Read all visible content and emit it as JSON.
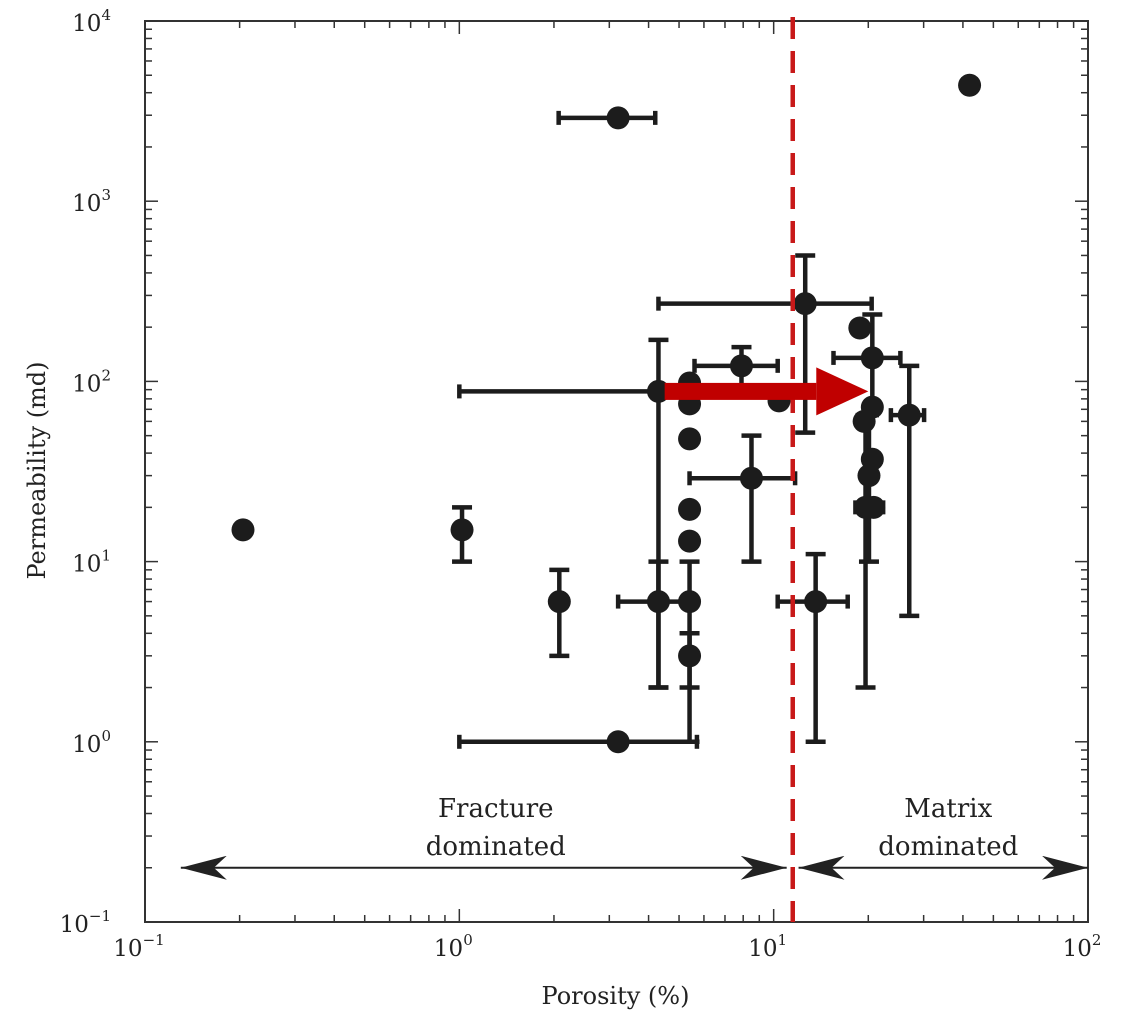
{
  "chart_data": {
    "type": "scatter",
    "xlabel": "Porosity (%)",
    "ylabel": "Permeability (md)",
    "x_scale": "log",
    "y_scale": "log",
    "xlim": [
      0.1,
      100
    ],
    "ylim": [
      0.1,
      10000
    ],
    "grid": false,
    "x_ticks": [
      {
        "base": "10",
        "exp": "−1",
        "value": 0.1
      },
      {
        "base": "10",
        "exp": "0",
        "value": 1
      },
      {
        "base": "10",
        "exp": "1",
        "value": 10
      },
      {
        "base": "10",
        "exp": "2",
        "value": 100
      }
    ],
    "y_ticks": [
      {
        "base": "10",
        "exp": "−1",
        "value": 0.1
      },
      {
        "base": "10",
        "exp": "0",
        "value": 1
      },
      {
        "base": "10",
        "exp": "1",
        "value": 10
      },
      {
        "base": "10",
        "exp": "2",
        "value": 100
      },
      {
        "base": "10",
        "exp": "3",
        "value": 1000
      },
      {
        "base": "10",
        "exp": "4",
        "value": 10000
      }
    ],
    "points": [
      {
        "x": 0.205,
        "y": 15
      },
      {
        "x": 3.2,
        "y": 2900,
        "x_err": [
          2.07,
          4.2
        ]
      },
      {
        "x": 42,
        "y": 4400
      },
      {
        "x": 12.6,
        "y": 270,
        "x_err": [
          4.3,
          20.5
        ],
        "y_err": [
          52,
          500
        ]
      },
      {
        "x": 18.8,
        "y": 198
      },
      {
        "x": 20.6,
        "y": 135,
        "x_err": [
          15.5,
          25.3
        ],
        "y_err": [
          75,
          235
        ]
      },
      {
        "x": 7.9,
        "y": 122,
        "x_err": [
          5.6,
          10.3
        ],
        "y_err": [
          95,
          155
        ]
      },
      {
        "x": 4.3,
        "y": 88,
        "x_err": [
          1.0,
          5.5
        ],
        "y_err": [
          2,
          170
        ]
      },
      {
        "x": 5.4,
        "y": 98
      },
      {
        "x": 5.4,
        "y": 75
      },
      {
        "x": 10.4,
        "y": 78
      },
      {
        "x": 19.4,
        "y": 60
      },
      {
        "x": 20.6,
        "y": 72
      },
      {
        "x": 27,
        "y": 65,
        "x_err": [
          23.6,
          30.1
        ],
        "y_err": [
          5,
          122
        ]
      },
      {
        "x": 5.4,
        "y": 48
      },
      {
        "x": 8.5,
        "y": 29,
        "x_err": [
          5.4,
          11.7
        ],
        "y_err": [
          10,
          50
        ]
      },
      {
        "x": 20.6,
        "y": 37
      },
      {
        "x": 20.1,
        "y": 30,
        "y_err": [
          10,
          65
        ]
      },
      {
        "x": 20.8,
        "y": 20,
        "x_err": [
          18.2,
          22.3
        ]
      },
      {
        "x": 19.6,
        "y": 20,
        "y_err": [
          2,
          65
        ]
      },
      {
        "x": 5.4,
        "y": 19.5
      },
      {
        "x": 5.4,
        "y": 13
      },
      {
        "x": 1.02,
        "y": 15,
        "y_err": [
          10,
          20
        ]
      },
      {
        "x": 2.08,
        "y": 6,
        "y_err": [
          3,
          9
        ]
      },
      {
        "x": 4.3,
        "y": 6,
        "x_err": [
          3.2,
          5.5
        ],
        "y_err": [
          2,
          10
        ]
      },
      {
        "x": 5.4,
        "y": 6,
        "y_err": [
          1,
          10
        ]
      },
      {
        "x": 13.6,
        "y": 6,
        "x_err": [
          10.3,
          17.2
        ],
        "y_err": [
          1,
          11
        ]
      },
      {
        "x": 5.4,
        "y": 3,
        "y_err": [
          2,
          4
        ]
      },
      {
        "x": 3.2,
        "y": 1,
        "x_err": [
          1.0,
          5.7
        ]
      }
    ],
    "boundary_x": 11.5,
    "arrow": {
      "x_from": 4.5,
      "x_to": 20.0,
      "y": 88
    },
    "regions": [
      {
        "lines": [
          "Fracture",
          "dominated"
        ],
        "x_from": 0.13,
        "x_to": 11.0,
        "y": 0.2
      },
      {
        "lines": [
          "Matrix",
          "dominated"
        ],
        "x_from": 12.0,
        "x_to": 100,
        "y": 0.2
      }
    ],
    "colors": {
      "points": "#1c1c1c",
      "boundary": "#c81919",
      "arrow": "#c00000",
      "axis": "#333333"
    }
  }
}
